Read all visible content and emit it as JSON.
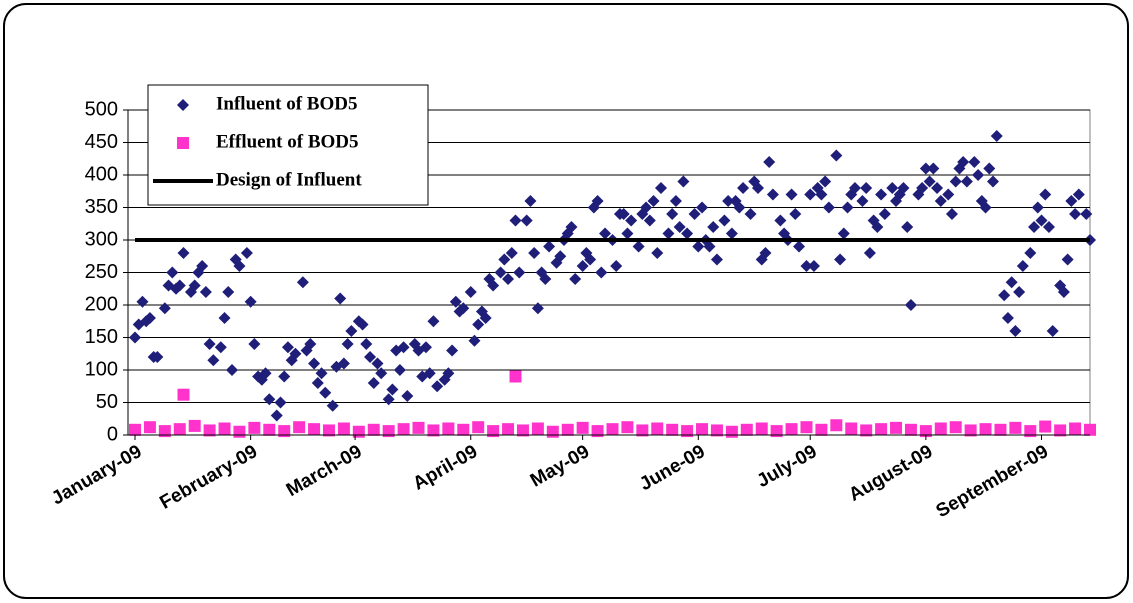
{
  "chart_data": {
    "type": "scatter",
    "xlim": [
      0,
      256
    ],
    "xticks": [
      {
        "value": 0,
        "label": "January-09"
      },
      {
        "value": 31,
        "label": "February-09"
      },
      {
        "value": 59,
        "label": "March-09"
      },
      {
        "value": 90,
        "label": "April-09"
      },
      {
        "value": 120,
        "label": "May-09"
      },
      {
        "value": 151,
        "label": "June-09"
      },
      {
        "value": 181,
        "label": "July-09"
      },
      {
        "value": 212,
        "label": "August-09"
      },
      {
        "value": 243,
        "label": "September-09"
      }
    ],
    "ylim": [
      0,
      500
    ],
    "yticks": [
      0,
      50,
      100,
      150,
      200,
      250,
      300,
      350,
      400,
      450,
      500
    ],
    "grid": true,
    "legend": "upper-left",
    "series": [
      {
        "name": "Influent of BOD5",
        "color": "#1f1f7a",
        "marker": "diamond",
        "x": [
          0,
          1,
          2,
          3,
          4,
          5,
          6,
          8,
          9,
          10,
          11,
          12,
          13,
          15,
          16,
          17,
          18,
          19,
          20,
          21,
          23,
          24,
          25,
          26,
          27,
          28,
          30,
          31,
          32,
          33,
          34,
          35,
          36,
          38,
          39,
          40,
          41,
          42,
          43,
          45,
          46,
          47,
          48,
          49,
          50,
          51,
          53,
          54,
          55,
          56,
          57,
          58,
          60,
          61,
          62,
          63,
          64,
          65,
          66,
          68,
          69,
          70,
          71,
          72,
          73,
          75,
          76,
          77,
          78,
          79,
          80,
          81,
          83,
          84,
          85,
          86,
          87,
          88,
          90,
          91,
          92,
          93,
          94,
          95,
          96,
          98,
          99,
          100,
          101,
          102,
          103,
          105,
          106,
          107,
          108,
          109,
          110,
          111,
          113,
          114,
          115,
          116,
          117,
          118,
          120,
          121,
          122,
          123,
          124,
          125,
          126,
          128,
          129,
          130,
          131,
          132,
          133,
          135,
          136,
          137,
          138,
          139,
          140,
          141,
          143,
          144,
          145,
          146,
          147,
          148,
          150,
          151,
          152,
          153,
          154,
          155,
          156,
          158,
          159,
          160,
          161,
          162,
          163,
          165,
          166,
          167,
          168,
          169,
          170,
          171,
          173,
          174,
          175,
          176,
          177,
          178,
          180,
          181,
          182,
          183,
          184,
          185,
          186,
          188,
          189,
          190,
          191,
          192,
          193,
          195,
          196,
          197,
          198,
          199,
          200,
          201,
          203,
          204,
          205,
          206,
          207,
          208,
          210,
          211,
          212,
          213,
          214,
          215,
          216,
          218,
          219,
          220,
          221,
          222,
          223,
          225,
          226,
          227,
          228,
          229,
          230,
          231,
          233,
          234,
          235,
          236,
          237,
          238,
          240,
          241,
          242,
          243,
          244,
          245,
          246,
          248,
          249,
          250,
          251,
          252,
          253,
          255,
          256
        ],
        "values": [
          150,
          170,
          205,
          175,
          180,
          120,
          120,
          195,
          230,
          250,
          225,
          230,
          280,
          220,
          230,
          250,
          260,
          220,
          140,
          115,
          135,
          180,
          220,
          100,
          270,
          260,
          280,
          205,
          140,
          90,
          85,
          95,
          55,
          30,
          50,
          90,
          135,
          115,
          125,
          235,
          130,
          140,
          110,
          80,
          95,
          65,
          45,
          105,
          210,
          110,
          140,
          160,
          175,
          170,
          140,
          120,
          80,
          110,
          95,
          55,
          70,
          130,
          100,
          135,
          60,
          140,
          130,
          90,
          135,
          95,
          175,
          75,
          85,
          95,
          130,
          205,
          190,
          195,
          220,
          145,
          170,
          190,
          180,
          240,
          230,
          250,
          270,
          240,
          280,
          330,
          250,
          330,
          360,
          280,
          195,
          250,
          240,
          290,
          265,
          275,
          300,
          310,
          320,
          240,
          260,
          280,
          270,
          350,
          360,
          250,
          310,
          300,
          260,
          340,
          340,
          310,
          330,
          290,
          340,
          350,
          330,
          360,
          280,
          380,
          310,
          340,
          360,
          320,
          390,
          310,
          340,
          290,
          350,
          300,
          290,
          320,
          270,
          330,
          360,
          310,
          360,
          350,
          380,
          340,
          390,
          380,
          270,
          280,
          420,
          370,
          330,
          310,
          300,
          370,
          340,
          290,
          260,
          370,
          260,
          380,
          370,
          390,
          350,
          430,
          270,
          310,
          350,
          370,
          380,
          360,
          380,
          280,
          330,
          320,
          370,
          340,
          380,
          360,
          370,
          380,
          320,
          200,
          370,
          380,
          410,
          390,
          410,
          380,
          360,
          370,
          340,
          390,
          410,
          420,
          390,
          420,
          400,
          360,
          350,
          410,
          390,
          460,
          215,
          180,
          235,
          160,
          220,
          260,
          280,
          320,
          350,
          330,
          370,
          320,
          160,
          230,
          220,
          270,
          360,
          340,
          370,
          340,
          300
        ]
      },
      {
        "name": "Effluent of BOD5",
        "color": "#ff33cc",
        "marker": "square",
        "x": [
          0,
          4,
          8,
          12,
          16,
          20,
          24,
          28,
          32,
          36,
          40,
          44,
          48,
          52,
          56,
          60,
          64,
          68,
          72,
          76,
          80,
          84,
          88,
          92,
          96,
          100,
          104,
          108,
          112,
          116,
          120,
          124,
          128,
          132,
          136,
          140,
          144,
          148,
          152,
          156,
          160,
          164,
          168,
          172,
          176,
          180,
          184,
          188,
          192,
          196,
          200,
          204,
          208,
          212,
          216,
          220,
          224,
          228,
          232,
          236,
          240,
          244,
          248,
          252,
          256,
          13,
          102
        ],
        "values": [
          8,
          12,
          6,
          9,
          14,
          7,
          10,
          5,
          11,
          8,
          6,
          12,
          9,
          7,
          10,
          5,
          8,
          6,
          9,
          11,
          7,
          10,
          8,
          12,
          6,
          9,
          7,
          10,
          5,
          8,
          11,
          6,
          9,
          12,
          7,
          10,
          8,
          6,
          9,
          7,
          5,
          8,
          10,
          6,
          9,
          12,
          8,
          15,
          10,
          7,
          9,
          11,
          8,
          6,
          10,
          12,
          7,
          9,
          8,
          11,
          6,
          13,
          7,
          10,
          8,
          62,
          90
        ]
      },
      {
        "name": "Design of Influent",
        "color": "#000000",
        "marker": "line",
        "x": [
          0,
          256
        ],
        "values": [
          300,
          300
        ]
      }
    ]
  }
}
